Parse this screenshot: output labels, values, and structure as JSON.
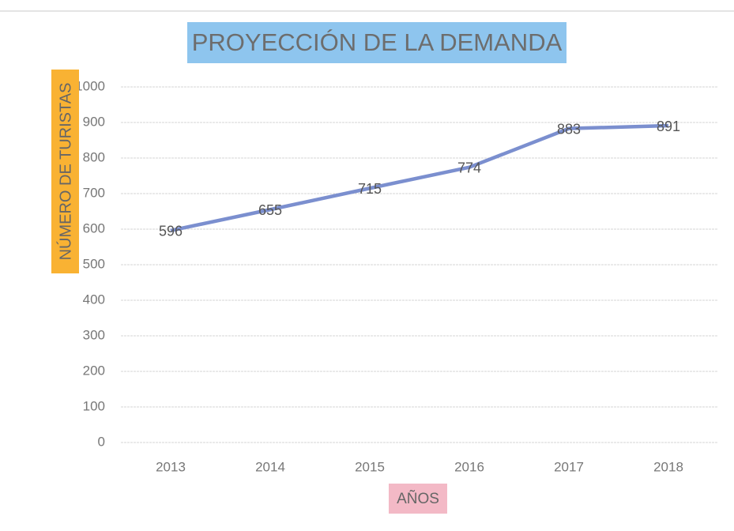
{
  "chart_data": {
    "type": "line",
    "title": "PROYECCIÓN DE LA DEMANDA",
    "y_label": "NÚMERO DE TURISTAS",
    "x_label": "AÑOS",
    "categories": [
      "2013",
      "2014",
      "2015",
      "2016",
      "2017",
      "2018"
    ],
    "values": [
      596,
      655,
      715,
      774,
      883,
      891
    ],
    "color": "#7b8fcf",
    "ylim": [
      0,
      1000
    ],
    "yticks": [
      0,
      100,
      200,
      300,
      400,
      500,
      600,
      700,
      800,
      900,
      1000
    ],
    "grid": true
  }
}
